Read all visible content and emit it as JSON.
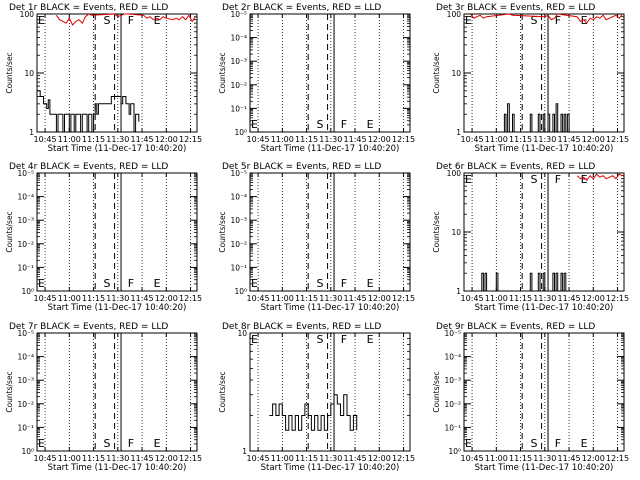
{
  "chart_data": {
    "type": "line",
    "time_ticks": [
      "10:45",
      "11:00",
      "11:15",
      "11:30",
      "11:45",
      "12:00",
      "12:15"
    ],
    "tick_values_min": [
      5,
      20,
      35,
      50,
      65,
      80,
      95
    ],
    "x_range_min": [
      0,
      99
    ],
    "event_lines_min": {
      "S": 43,
      "F": 58,
      "E": 74,
      "dash1": 36,
      "dash2": 48,
      "solid": 52
    },
    "event_labels": [
      "S",
      "F",
      "E"
    ],
    "x_label": "Start Time (11-Dec-17 10:40:20)",
    "y_label": "Counts/sec",
    "panels": [
      {
        "title": "Det 1r BLACK = Events, RED = LLD",
        "y_scale": "log",
        "y_ticks": [
          "1",
          "10",
          "100"
        ],
        "y_range_exp": [
          0,
          2
        ],
        "label_y": "top",
        "events": [
          [
            0,
            5.0
          ],
          [
            2,
            4.0
          ],
          [
            4,
            3.0
          ],
          [
            6,
            2.5
          ],
          [
            7,
            3.5
          ],
          [
            8,
            2.0
          ],
          [
            10,
            2.0
          ],
          [
            12,
            1.0
          ],
          [
            13,
            2.0
          ],
          [
            16,
            1.0
          ],
          [
            17,
            2.0
          ],
          [
            20,
            1.0
          ],
          [
            21,
            2.0
          ],
          [
            23,
            1.0
          ],
          [
            24,
            2.0
          ],
          [
            27,
            1.0
          ],
          [
            28,
            2.0
          ],
          [
            31,
            1.0
          ],
          [
            32,
            2.0
          ],
          [
            34,
            1.0
          ],
          [
            35,
            2.0
          ],
          [
            36,
            3.0
          ],
          [
            37,
            2.0
          ],
          [
            38,
            3.0
          ],
          [
            40,
            3.0
          ],
          [
            42,
            3.0
          ],
          [
            44,
            3.0
          ],
          [
            46,
            4.0
          ],
          [
            48,
            4.0
          ],
          [
            50,
            4.0
          ],
          [
            52,
            3.0
          ],
          [
            53,
            4.0
          ],
          [
            55,
            3.0
          ],
          [
            57,
            2.0
          ],
          [
            58,
            3.0
          ],
          [
            60,
            1.0
          ],
          [
            61,
            2.0
          ],
          [
            63,
            1.5
          ]
        ],
        "lld": [
          [
            12,
            95
          ],
          [
            14,
            80
          ],
          [
            16,
            75
          ],
          [
            18,
            70
          ],
          [
            20,
            85
          ],
          [
            22,
            65
          ],
          [
            24,
            75
          ],
          [
            26,
            80
          ],
          [
            28,
            70
          ],
          [
            30,
            90
          ],
          [
            32,
            100
          ],
          [
            34,
            95
          ],
          [
            48,
            100
          ],
          [
            50,
            90
          ],
          [
            52,
            95
          ],
          [
            54,
            100
          ],
          [
            56,
            100
          ],
          [
            66,
            95
          ],
          [
            68,
            85
          ],
          [
            70,
            90
          ],
          [
            72,
            80
          ],
          [
            74,
            85
          ],
          [
            76,
            80
          ],
          [
            78,
            90
          ],
          [
            80,
            85
          ],
          [
            84,
            80
          ],
          [
            86,
            85
          ],
          [
            88,
            80
          ],
          [
            90,
            90
          ],
          [
            92,
            80
          ],
          [
            94,
            95
          ],
          [
            96,
            75
          ],
          [
            98,
            90
          ]
        ]
      },
      {
        "title": "Det 2r BLACK = Events, RED = LLD",
        "y_scale": "log",
        "y_ticks": [
          "10⁰",
          "10⁻¹",
          "10⁻²",
          "10⁻³",
          "10⁻⁴",
          "10⁻⁵"
        ],
        "y_range_exp": [
          0,
          5
        ],
        "label_y": "bottom",
        "events": [],
        "lld": []
      },
      {
        "title": "Det 3r BLACK = Events, RED = LLD",
        "y_scale": "log",
        "y_ticks": [
          "1",
          "10",
          "100"
        ],
        "y_range_exp": [
          0,
          2
        ],
        "label_y": "top",
        "events": [
          [
            24,
            1.0
          ],
          [
            25,
            2.0
          ],
          [
            26,
            1.0
          ],
          [
            27,
            3.0
          ],
          [
            28,
            1.0
          ],
          [
            30,
            2.0
          ],
          [
            31,
            1.0
          ],
          [
            40,
            1.0
          ],
          [
            41,
            2.0
          ],
          [
            42,
            1.0
          ],
          [
            46,
            2.0
          ],
          [
            47,
            1.0
          ],
          [
            49,
            2.0
          ],
          [
            50,
            1.0
          ],
          [
            52,
            2.0
          ],
          [
            53,
            1.0
          ],
          [
            55,
            2.0
          ],
          [
            56,
            1.0
          ],
          [
            57,
            3.0
          ],
          [
            58,
            1.0
          ],
          [
            60,
            2.0
          ],
          [
            61,
            1.0
          ],
          [
            62,
            2.0
          ],
          [
            63,
            1.0
          ],
          [
            64,
            2.0
          ],
          [
            65,
            1.0
          ]
        ],
        "lld": [
          [
            4,
            100
          ],
          [
            6,
            85
          ],
          [
            8,
            90
          ],
          [
            10,
            95
          ],
          [
            12,
            85
          ],
          [
            14,
            90
          ],
          [
            28,
            100
          ],
          [
            30,
            95
          ],
          [
            50,
            90
          ],
          [
            52,
            95
          ],
          [
            54,
            80
          ],
          [
            56,
            85
          ],
          [
            58,
            100
          ],
          [
            70,
            90
          ],
          [
            72,
            75
          ],
          [
            74,
            80
          ],
          [
            76,
            70
          ],
          [
            78,
            85
          ],
          [
            80,
            80
          ],
          [
            82,
            90
          ],
          [
            84,
            85
          ],
          [
            86,
            95
          ],
          [
            88,
            80
          ],
          [
            90,
            85
          ],
          [
            92,
            90
          ],
          [
            94,
            95
          ],
          [
            96,
            85
          ],
          [
            98,
            100
          ]
        ]
      },
      {
        "title": "Det 4r BLACK = Events, RED = LLD",
        "y_scale": "log",
        "y_ticks": [
          "10⁰",
          "10⁻¹",
          "10⁻²",
          "10⁻³",
          "10⁻⁴",
          "10⁻⁵"
        ],
        "y_range_exp": [
          0,
          5
        ],
        "label_y": "bottom",
        "events": [],
        "lld": []
      },
      {
        "title": "Det 5r BLACK = Events, RED = LLD",
        "y_scale": "log",
        "y_ticks": [
          "10⁰",
          "10⁻¹",
          "10⁻²",
          "10⁻³",
          "10⁻⁴",
          "10⁻⁵"
        ],
        "y_range_exp": [
          0,
          5
        ],
        "label_y": "bottom",
        "events": [],
        "lld": []
      },
      {
        "title": "Det 6r BLACK = Events, RED = LLD",
        "y_scale": "log",
        "y_ticks": [
          "1",
          "10",
          "100"
        ],
        "y_range_exp": [
          0,
          2
        ],
        "label_y": "top",
        "events": [
          [
            10,
            1.0
          ],
          [
            11,
            2.0
          ],
          [
            12,
            1.0
          ],
          [
            13,
            2.0
          ],
          [
            14,
            1.0
          ],
          [
            20,
            2.0
          ],
          [
            21,
            1.0
          ],
          [
            28,
            1.0
          ],
          [
            40,
            1.0
          ],
          [
            41,
            2.0
          ],
          [
            42,
            1.0
          ],
          [
            46,
            2.0
          ],
          [
            47,
            1.0
          ],
          [
            49,
            2.0
          ],
          [
            50,
            1.0
          ],
          [
            55,
            2.0
          ],
          [
            56,
            1.0
          ],
          [
            57,
            2.0
          ],
          [
            58,
            1.0
          ],
          [
            60,
            2.0
          ],
          [
            61,
            1.0
          ],
          [
            62,
            2.0
          ],
          [
            63,
            1.0
          ]
        ],
        "lld": [
          [
            70,
            90
          ],
          [
            72,
            80
          ],
          [
            74,
            85
          ],
          [
            76,
            75
          ],
          [
            78,
            90
          ],
          [
            80,
            80
          ],
          [
            82,
            95
          ],
          [
            84,
            85
          ],
          [
            86,
            90
          ],
          [
            88,
            80
          ],
          [
            90,
            85
          ],
          [
            92,
            90
          ],
          [
            94,
            80
          ],
          [
            96,
            95
          ],
          [
            98,
            90
          ]
        ]
      },
      {
        "title": "Det 7r BLACK = Events, RED = LLD",
        "y_scale": "log",
        "y_ticks": [
          "10⁰",
          "10⁻¹",
          "10⁻²",
          "10⁻³",
          "10⁻⁴",
          "10⁻⁵"
        ],
        "y_range_exp": [
          0,
          5
        ],
        "label_y": "bottom",
        "events": [],
        "lld": []
      },
      {
        "title": "Det 8r BLACK = Events, RED = LLD",
        "y_scale": "log",
        "y_ticks": [
          "1",
          "10"
        ],
        "y_range_exp": [
          0,
          1
        ],
        "label_y": "top",
        "events": [
          [
            12,
            2.0
          ],
          [
            14,
            2.5
          ],
          [
            16,
            2.0
          ],
          [
            18,
            2.5
          ],
          [
            20,
            2.0
          ],
          [
            22,
            1.5
          ],
          [
            24,
            2.0
          ],
          [
            26,
            1.5
          ],
          [
            28,
            2.0
          ],
          [
            30,
            1.5
          ],
          [
            32,
            2.0
          ],
          [
            34,
            2.5
          ],
          [
            36,
            2.0
          ],
          [
            38,
            1.5
          ],
          [
            40,
            2.0
          ],
          [
            42,
            1.5
          ],
          [
            44,
            2.0
          ],
          [
            46,
            1.5
          ],
          [
            48,
            2.0
          ],
          [
            50,
            2.5
          ],
          [
            52,
            3.0
          ],
          [
            54,
            2.5
          ],
          [
            56,
            2.0
          ],
          [
            58,
            3.0
          ],
          [
            60,
            2.0
          ],
          [
            62,
            1.5
          ],
          [
            64,
            2.0
          ],
          [
            66,
            1.5
          ]
        ],
        "lld": []
      },
      {
        "title": "Det 9r BLACK = Events, RED = LLD",
        "y_scale": "log",
        "y_ticks": [
          "10⁰",
          "10⁻¹",
          "10⁻²",
          "10⁻³",
          "10⁻⁴",
          "10⁻⁵"
        ],
        "y_range_exp": [
          0,
          5
        ],
        "label_y": "bottom",
        "events": [],
        "lld": []
      }
    ]
  }
}
